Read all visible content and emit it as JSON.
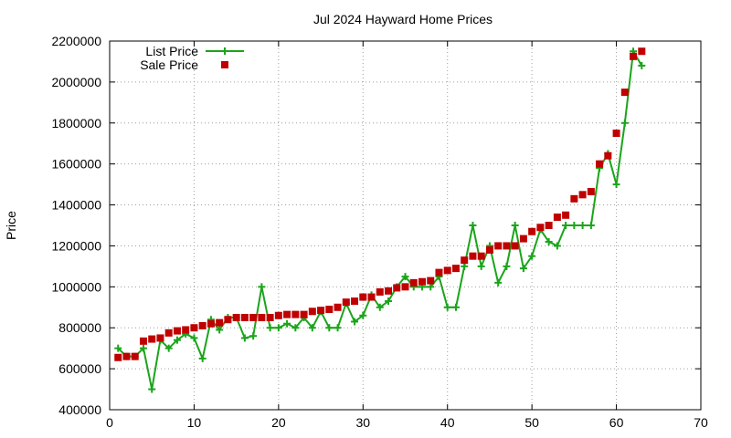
{
  "chart_data": {
    "type": "line",
    "title": "Jul 2024 Hayward Home Prices",
    "xlabel": "",
    "ylabel": "Price",
    "xlim": [
      0,
      70
    ],
    "ylim": [
      400000,
      2200000
    ],
    "xticks": [
      0,
      10,
      20,
      30,
      40,
      50,
      60,
      70
    ],
    "yticks": [
      400000,
      600000,
      800000,
      1000000,
      1200000,
      1400000,
      1600000,
      1800000,
      2000000,
      2200000
    ],
    "grid": true,
    "legend_position": "top-left",
    "series": [
      {
        "name": "List Price",
        "style": "line-with-plus-markers",
        "color": "#1aa51a",
        "x": [
          1,
          2,
          3,
          4,
          5,
          6,
          7,
          8,
          9,
          10,
          11,
          12,
          13,
          14,
          15,
          16,
          17,
          18,
          19,
          20,
          21,
          22,
          23,
          24,
          25,
          26,
          27,
          28,
          29,
          30,
          31,
          32,
          33,
          34,
          35,
          36,
          37,
          38,
          39,
          40,
          41,
          42,
          43,
          44,
          45,
          46,
          47,
          48,
          49,
          50,
          51,
          52,
          53,
          54,
          55,
          56,
          57,
          58,
          59,
          60,
          61,
          62,
          63
        ],
        "y": [
          700000,
          660000,
          660000,
          700000,
          500000,
          740000,
          700000,
          740000,
          770000,
          750000,
          650000,
          840000,
          790000,
          850000,
          850000,
          750000,
          760000,
          1000000,
          800000,
          800000,
          820000,
          800000,
          850000,
          800000,
          880000,
          800000,
          800000,
          920000,
          830000,
          860000,
          960000,
          900000,
          930000,
          1000000,
          1050000,
          1000000,
          1000000,
          1000000,
          1050000,
          900000,
          900000,
          1100000,
          1300000,
          1100000,
          1200000,
          1020000,
          1100000,
          1300000,
          1090000,
          1150000,
          1280000,
          1220000,
          1200000,
          1300000,
          1300000,
          1300000,
          1300000,
          1580000,
          1650000,
          1500000,
          1800000,
          2150000,
          2080000
        ]
      },
      {
        "name": "Sale Price",
        "style": "square-markers",
        "color": "#c00000",
        "x": [
          1,
          2,
          3,
          4,
          5,
          6,
          7,
          8,
          9,
          10,
          11,
          12,
          13,
          14,
          15,
          16,
          17,
          18,
          19,
          20,
          21,
          22,
          23,
          24,
          25,
          26,
          27,
          28,
          29,
          30,
          31,
          32,
          33,
          34,
          35,
          36,
          37,
          38,
          39,
          40,
          41,
          42,
          43,
          44,
          45,
          46,
          47,
          48,
          49,
          50,
          51,
          52,
          53,
          54,
          55,
          56,
          57,
          58,
          59,
          60,
          61,
          62,
          63
        ],
        "y": [
          655000,
          660000,
          660000,
          735000,
          745000,
          750000,
          775000,
          785000,
          790000,
          800000,
          810000,
          820000,
          825000,
          840000,
          850000,
          850000,
          850000,
          850000,
          850000,
          860000,
          865000,
          865000,
          865000,
          880000,
          885000,
          890000,
          900000,
          925000,
          930000,
          950000,
          950000,
          975000,
          980000,
          995000,
          1000000,
          1020000,
          1025000,
          1030000,
          1070000,
          1080000,
          1090000,
          1130000,
          1150000,
          1150000,
          1180000,
          1200000,
          1200000,
          1200000,
          1235000,
          1270000,
          1290000,
          1300000,
          1340000,
          1350000,
          1430000,
          1450000,
          1465000,
          1600000,
          1640000,
          1750000,
          1950000,
          2125000,
          2150000
        ]
      }
    ]
  }
}
